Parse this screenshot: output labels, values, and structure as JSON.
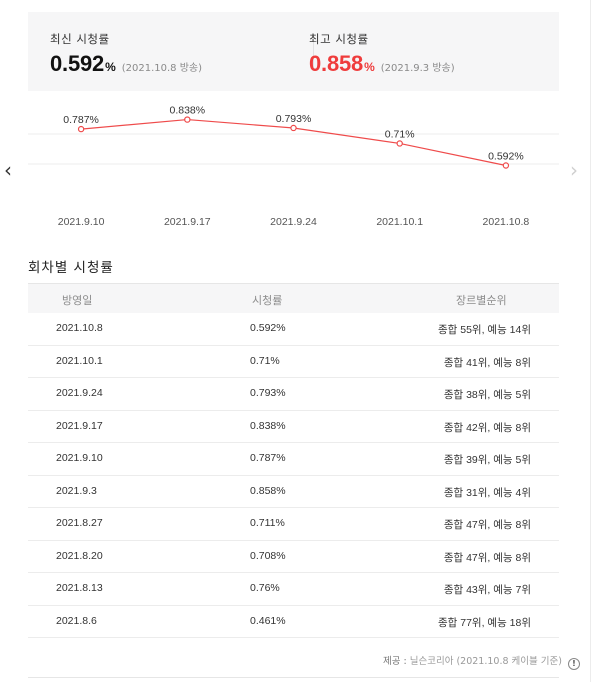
{
  "summary": {
    "latest": {
      "label": "최신 시청률",
      "value": "0.592",
      "unit": "%",
      "aired": "(2021.10.8 방송)"
    },
    "peak": {
      "label": "최고 시청률",
      "value": "0.858",
      "unit": "%",
      "aired": "(2021.9.3 방송)"
    },
    "peak_color": "#ef3c3c"
  },
  "chart_data": {
    "type": "line",
    "categories": [
      "2021.9.10",
      "2021.9.17",
      "2021.9.24",
      "2021.10.1",
      "2021.10.8"
    ],
    "values": [
      0.787,
      0.838,
      0.793,
      0.71,
      0.592
    ],
    "value_labels": [
      "0.787%",
      "0.838%",
      "0.793%",
      "0.71%",
      "0.592%"
    ],
    "title": "",
    "xlabel": "",
    "ylabel": "",
    "ylim": [
      0.45,
      0.9
    ],
    "grid": true,
    "line_color": "#ef4b4b"
  },
  "nav": {
    "prev_icon": "chevron-left-icon",
    "next_icon": "chevron-right-icon"
  },
  "episodes": {
    "title": "회차별 시청률",
    "headers": [
      "방영일",
      "시청률",
      "장르별순위"
    ],
    "rows": [
      {
        "date": "2021.10.8",
        "rate": "0.592%",
        "rank": "종합 55위, 예능 14위"
      },
      {
        "date": "2021.10.1",
        "rate": "0.71%",
        "rank": "종합 41위, 예능 8위"
      },
      {
        "date": "2021.9.24",
        "rate": "0.793%",
        "rank": "종합 38위, 예능 5위"
      },
      {
        "date": "2021.9.17",
        "rate": "0.838%",
        "rank": "종합 42위, 예능 8위"
      },
      {
        "date": "2021.9.10",
        "rate": "0.787%",
        "rank": "종합 39위, 예능 5위"
      },
      {
        "date": "2021.9.3",
        "rate": "0.858%",
        "rank": "종합 31위, 예능 4위"
      },
      {
        "date": "2021.8.27",
        "rate": "0.711%",
        "rank": "종합 47위, 예능 8위"
      },
      {
        "date": "2021.8.20",
        "rate": "0.708%",
        "rank": "종합 47위, 예능 8위"
      },
      {
        "date": "2021.8.13",
        "rate": "0.76%",
        "rank": "종합 43위, 예능 7위"
      },
      {
        "date": "2021.8.6",
        "rate": "0.461%",
        "rank": "종합 77위, 예능 18위"
      }
    ]
  },
  "footer": {
    "label": "제공 :",
    "source": "닐슨코리아 (2021.10.8 케이블 기준)",
    "info_icon": "info-icon"
  }
}
